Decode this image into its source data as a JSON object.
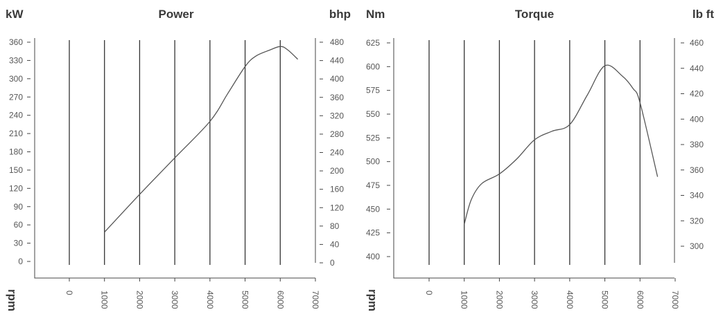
{
  "chart_data": [
    {
      "type": "line",
      "title": "Power",
      "xlabel": "rpm",
      "ylabel_left": "kW",
      "ylabel_right": "bhp",
      "xlim": [
        0,
        7000
      ],
      "x_ticks": [
        "0",
        "1000",
        "2000",
        "3000",
        "4000",
        "5000",
        "6000",
        "7000"
      ],
      "ylim_left": [
        0,
        360
      ],
      "y_ticks_left": [
        "0",
        "30",
        "60",
        "90",
        "120",
        "150",
        "180",
        "210",
        "240",
        "270",
        "300",
        "330",
        "360"
      ],
      "ylim_right": [
        0,
        480
      ],
      "y_ticks_right": [
        "0",
        "40",
        "80",
        "120",
        "160",
        "200",
        "240",
        "280",
        "320",
        "360",
        "400",
        "440",
        "480"
      ],
      "grid_x": [
        0,
        1000,
        2000,
        3000,
        4000,
        5000,
        6000
      ],
      "series": [
        {
          "x": [
            1000,
            2000,
            3000,
            4000,
            4500,
            5000,
            5300,
            5700,
            6000,
            6200,
            6500
          ],
          "y": [
            48,
            110,
            170,
            230,
            275,
            320,
            337,
            347,
            353,
            348,
            332
          ]
        }
      ]
    },
    {
      "type": "line",
      "title": "Torque",
      "xlabel": "rpm",
      "ylabel_left": "Nm",
      "ylabel_right": "lb ft",
      "xlim": [
        0,
        7000
      ],
      "x_ticks": [
        "0",
        "1000",
        "2000",
        "3000",
        "4000",
        "5000",
        "6000",
        "7000"
      ],
      "ylim_left": [
        400,
        625
      ],
      "y_ticks_left": [
        "400",
        "425",
        "450",
        "475",
        "500",
        "525",
        "550",
        "575",
        "600",
        "625"
      ],
      "ylim_right": [
        295,
        460
      ],
      "y_ticks_right": [
        "300",
        "320",
        "340",
        "360",
        "380",
        "400",
        "420",
        "440",
        "460"
      ],
      "grid_x": [
        0,
        1000,
        2000,
        3000,
        4000,
        5000,
        6000
      ],
      "series": [
        {
          "x": [
            1000,
            1200,
            1500,
            2000,
            2500,
            3000,
            3500,
            4000,
            4500,
            5000,
            5500,
            5800,
            6000,
            6500
          ],
          "y": [
            434,
            460,
            477,
            487,
            503,
            523,
            532,
            539,
            570,
            601,
            590,
            577,
            562,
            484
          ]
        }
      ]
    }
  ]
}
